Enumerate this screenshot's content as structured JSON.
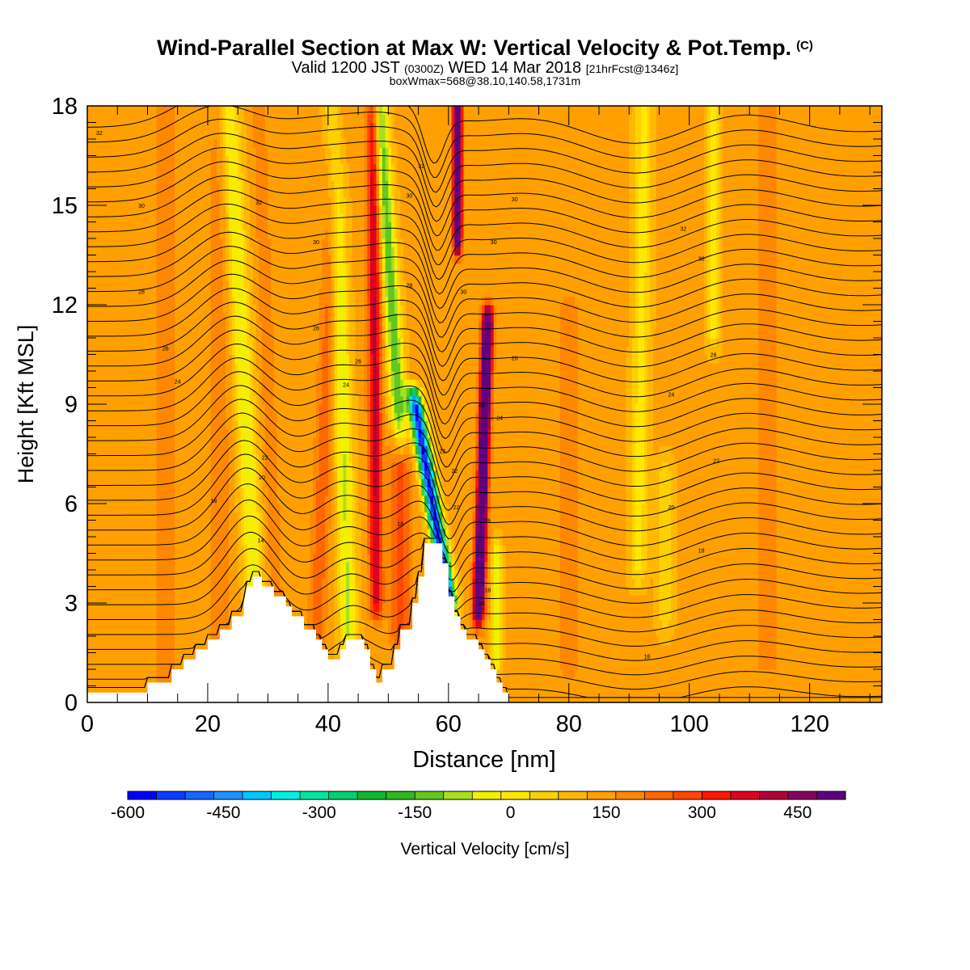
{
  "title": "Wind-Parallel Section at Max W: Vertical Velocity & Pot.Temp.",
  "title_mark": "(C)",
  "subtitle_a": "Valid 1200 JST",
  "subtitle_b": "(0300Z)",
  "subtitle_c": "WED 14 Mar 2018",
  "subtitle_d": "[21hrFcst@1346z]",
  "box_info": "boxWmax=568@38.10,140.58,1731m",
  "chart_data": {
    "type": "heatmap",
    "xlabel": "Distance [nm]",
    "ylabel": "Height [Kft MSL]",
    "xlim": [
      0,
      132
    ],
    "ylim": [
      0,
      18
    ],
    "x_ticks": [
      0,
      20,
      40,
      60,
      80,
      100,
      120
    ],
    "y_ticks": [
      0,
      3,
      6,
      9,
      12,
      15,
      18
    ],
    "colorbar": {
      "label": "Vertical Velocity [cm/s]",
      "min": -600,
      "max": 525,
      "step": 37.5,
      "tick_values": [
        -600,
        -450,
        -300,
        -150,
        0,
        150,
        300,
        450
      ],
      "tick_labels": [
        "-600",
        "-450",
        "-300",
        "-150",
        "0",
        "150",
        "300",
        "450"
      ],
      "colors": [
        "#0000ff",
        "#0a3cff",
        "#1466ff",
        "#1e90ff",
        "#00c8ff",
        "#00f0e6",
        "#00e8a0",
        "#00d070",
        "#10b830",
        "#30b820",
        "#60c820",
        "#a8e020",
        "#f0f000",
        "#ffe800",
        "#ffd000",
        "#ffb800",
        "#ffa000",
        "#ff8800",
        "#ff6800",
        "#ff4800",
        "#ff1800",
        "#e00020",
        "#b0003a",
        "#880060",
        "#600080"
      ]
    },
    "terrain": [
      [
        0,
        0.3
      ],
      [
        10,
        0.3
      ],
      [
        10,
        0.6
      ],
      [
        14,
        0.6
      ],
      [
        14,
        1
      ],
      [
        16,
        1
      ],
      [
        16,
        1.3
      ],
      [
        18,
        1.3
      ],
      [
        18,
        1.6
      ],
      [
        20,
        1.6
      ],
      [
        20,
        1.9
      ],
      [
        22,
        1.9
      ],
      [
        22,
        2.2
      ],
      [
        24,
        2.2
      ],
      [
        24,
        2.6
      ],
      [
        26,
        2.6
      ],
      [
        26,
        3
      ],
      [
        26.5,
        3.5
      ],
      [
        27.5,
        3.5
      ],
      [
        27.5,
        3.8
      ],
      [
        29,
        3.8
      ],
      [
        29,
        3.5
      ],
      [
        31,
        3.5
      ],
      [
        31,
        3.2
      ],
      [
        33,
        3.2
      ],
      [
        33,
        2.9
      ],
      [
        34,
        2.9
      ],
      [
        34,
        2.6
      ],
      [
        36,
        2.6
      ],
      [
        36,
        2.2
      ],
      [
        38,
        2.2
      ],
      [
        38,
        1.9
      ],
      [
        39,
        1.9
      ],
      [
        39,
        1.6
      ],
      [
        40,
        1.6
      ],
      [
        40,
        1.3
      ],
      [
        42,
        1.3
      ],
      [
        42,
        1.6
      ],
      [
        43,
        1.6
      ],
      [
        43,
        1.9
      ],
      [
        46,
        1.9
      ],
      [
        46,
        1.6
      ],
      [
        47,
        1.6
      ],
      [
        47,
        1
      ],
      [
        48,
        1
      ],
      [
        48,
        0.6
      ],
      [
        49,
        0.6
      ],
      [
        49,
        1
      ],
      [
        51,
        1
      ],
      [
        51,
        1.6
      ],
      [
        52,
        1.6
      ],
      [
        52,
        2.2
      ],
      [
        54,
        2.2
      ],
      [
        54,
        3
      ],
      [
        55,
        3
      ],
      [
        55,
        3.8
      ],
      [
        56,
        3.8
      ],
      [
        56,
        4.8
      ],
      [
        59,
        4.8
      ],
      [
        59,
        4.2
      ],
      [
        60,
        4.2
      ],
      [
        60,
        3.2
      ],
      [
        61,
        3.2
      ],
      [
        61,
        2.6
      ],
      [
        62,
        2.6
      ],
      [
        62,
        2.2
      ],
      [
        63,
        2.2
      ],
      [
        63,
        1.9
      ],
      [
        65,
        1.9
      ],
      [
        65,
        1.6
      ],
      [
        66,
        1.6
      ],
      [
        66,
        1.3
      ],
      [
        67,
        1.3
      ],
      [
        67,
        1
      ],
      [
        68,
        1
      ],
      [
        68,
        0.6
      ],
      [
        69,
        0.6
      ],
      [
        69,
        0.3
      ],
      [
        70,
        0.3
      ],
      [
        70,
        0
      ],
      [
        132,
        0
      ]
    ],
    "w_features": [
      {
        "x": 28,
        "w": -140,
        "from": 2.6,
        "to": 18,
        "lean": -4.5,
        "width": 1.6
      },
      {
        "x": 31.5,
        "w": 60,
        "from": 2,
        "to": 18,
        "lean": -3,
        "width": 1.2
      },
      {
        "x": 38,
        "w": 90,
        "from": 1.8,
        "to": 18,
        "lean": 3.5,
        "width": 1.5
      },
      {
        "x": 43.5,
        "w": -160,
        "from": 1.5,
        "to": 18,
        "lean": -2.5,
        "width": 1.4
      },
      {
        "x": 48,
        "w": 220,
        "from": 3,
        "to": 18,
        "lean": -0.5,
        "width": 1.1
      },
      {
        "x": 52,
        "w": 110,
        "from": 2,
        "to": 8,
        "lean": 0,
        "width": 1.8
      },
      {
        "x": 52,
        "w": -230,
        "from": 8,
        "to": 18,
        "lean": -3.5,
        "width": 1.3
      },
      {
        "x": 60,
        "w": -580,
        "from": 3.2,
        "to": 9,
        "lean": -5.5,
        "width": 1.2
      },
      {
        "x": 61.5,
        "w": 520,
        "from": 14,
        "to": 18,
        "lean": 0,
        "width": 0.7
      },
      {
        "x": 65,
        "w": 480,
        "from": 2.8,
        "to": 11.5,
        "lean": 1.5,
        "width": 0.9
      },
      {
        "x": 68,
        "w": -140,
        "from": 1.4,
        "to": 4.5,
        "lean": 0,
        "width": 0.8
      },
      {
        "x": 91.5,
        "w": -100,
        "from": 4,
        "to": 18,
        "lean": 1,
        "width": 1.4
      },
      {
        "x": 96,
        "w": -70,
        "from": 2.5,
        "to": 7,
        "lean": 0,
        "width": 1.3
      },
      {
        "x": 104,
        "w": -90,
        "from": 11,
        "to": 18,
        "lean": 0,
        "width": 1.0
      },
      {
        "x": 13,
        "w": 40,
        "from": 0.5,
        "to": 18,
        "lean": 0,
        "width": 3.0
      },
      {
        "x": 22,
        "w": 45,
        "from": 1.5,
        "to": 18,
        "lean": 0,
        "width": 2.2
      },
      {
        "x": 80,
        "w": 40,
        "from": 1,
        "to": 12,
        "lean": 0,
        "width": 3.0
      },
      {
        "x": 113,
        "w": 35,
        "from": 1,
        "to": 18,
        "lean": 0,
        "width": 3.5
      }
    ],
    "theta_labels": [
      {
        "x": 2,
        "y": 17.2,
        "text": "32"
      },
      {
        "x": 9,
        "y": 15.0,
        "text": "30"
      },
      {
        "x": 9,
        "y": 12.4,
        "text": "28"
      },
      {
        "x": 13,
        "y": 10.7,
        "text": "26"
      },
      {
        "x": 15,
        "y": 9.7,
        "text": "24"
      },
      {
        "x": 21,
        "y": 6.1,
        "text": "18"
      },
      {
        "x": 28.5,
        "y": 15.1,
        "text": "32"
      },
      {
        "x": 28.8,
        "y": 4.9,
        "text": "14"
      },
      {
        "x": 29,
        "y": 6.8,
        "text": "20"
      },
      {
        "x": 29.5,
        "y": 7.4,
        "text": "22"
      },
      {
        "x": 38,
        "y": 13.9,
        "text": "30"
      },
      {
        "x": 38,
        "y": 11.3,
        "text": "28"
      },
      {
        "x": 43,
        "y": 9.6,
        "text": "24"
      },
      {
        "x": 45,
        "y": 10.3,
        "text": "26"
      },
      {
        "x": 52,
        "y": 5.4,
        "text": "18"
      },
      {
        "x": 53.5,
        "y": 12.6,
        "text": "28"
      },
      {
        "x": 53.5,
        "y": 15.3,
        "text": "30"
      },
      {
        "x": 55.5,
        "y": 16.2,
        "text": "32"
      },
      {
        "x": 56,
        "y": 7.6,
        "text": "20"
      },
      {
        "x": 59,
        "y": 7.6,
        "text": "22"
      },
      {
        "x": 61,
        "y": 7.0,
        "text": "22"
      },
      {
        "x": 61.3,
        "y": 5.9,
        "text": "22"
      },
      {
        "x": 62.5,
        "y": 12.4,
        "text": "30"
      },
      {
        "x": 65.5,
        "y": 9.0,
        "text": "26"
      },
      {
        "x": 66.5,
        "y": 5.5,
        "text": "26"
      },
      {
        "x": 66.5,
        "y": 3.4,
        "text": "18"
      },
      {
        "x": 65.5,
        "y": 3.0,
        "text": "20"
      },
      {
        "x": 67.5,
        "y": 13.9,
        "text": "30"
      },
      {
        "x": 68.5,
        "y": 8.6,
        "text": "24"
      },
      {
        "x": 71,
        "y": 10.4,
        "text": "26"
      },
      {
        "x": 71,
        "y": 15.2,
        "text": "30"
      },
      {
        "x": 93,
        "y": 1.4,
        "text": "16"
      },
      {
        "x": 97,
        "y": 5.9,
        "text": "20"
      },
      {
        "x": 97,
        "y": 9.3,
        "text": "24"
      },
      {
        "x": 99,
        "y": 14.3,
        "text": "32"
      },
      {
        "x": 102,
        "y": 4.6,
        "text": "18"
      },
      {
        "x": 102,
        "y": 13.4,
        "text": "30"
      },
      {
        "x": 104,
        "y": 10.5,
        "text": "28"
      },
      {
        "x": 104.5,
        "y": 7.3,
        "text": "22"
      }
    ]
  }
}
